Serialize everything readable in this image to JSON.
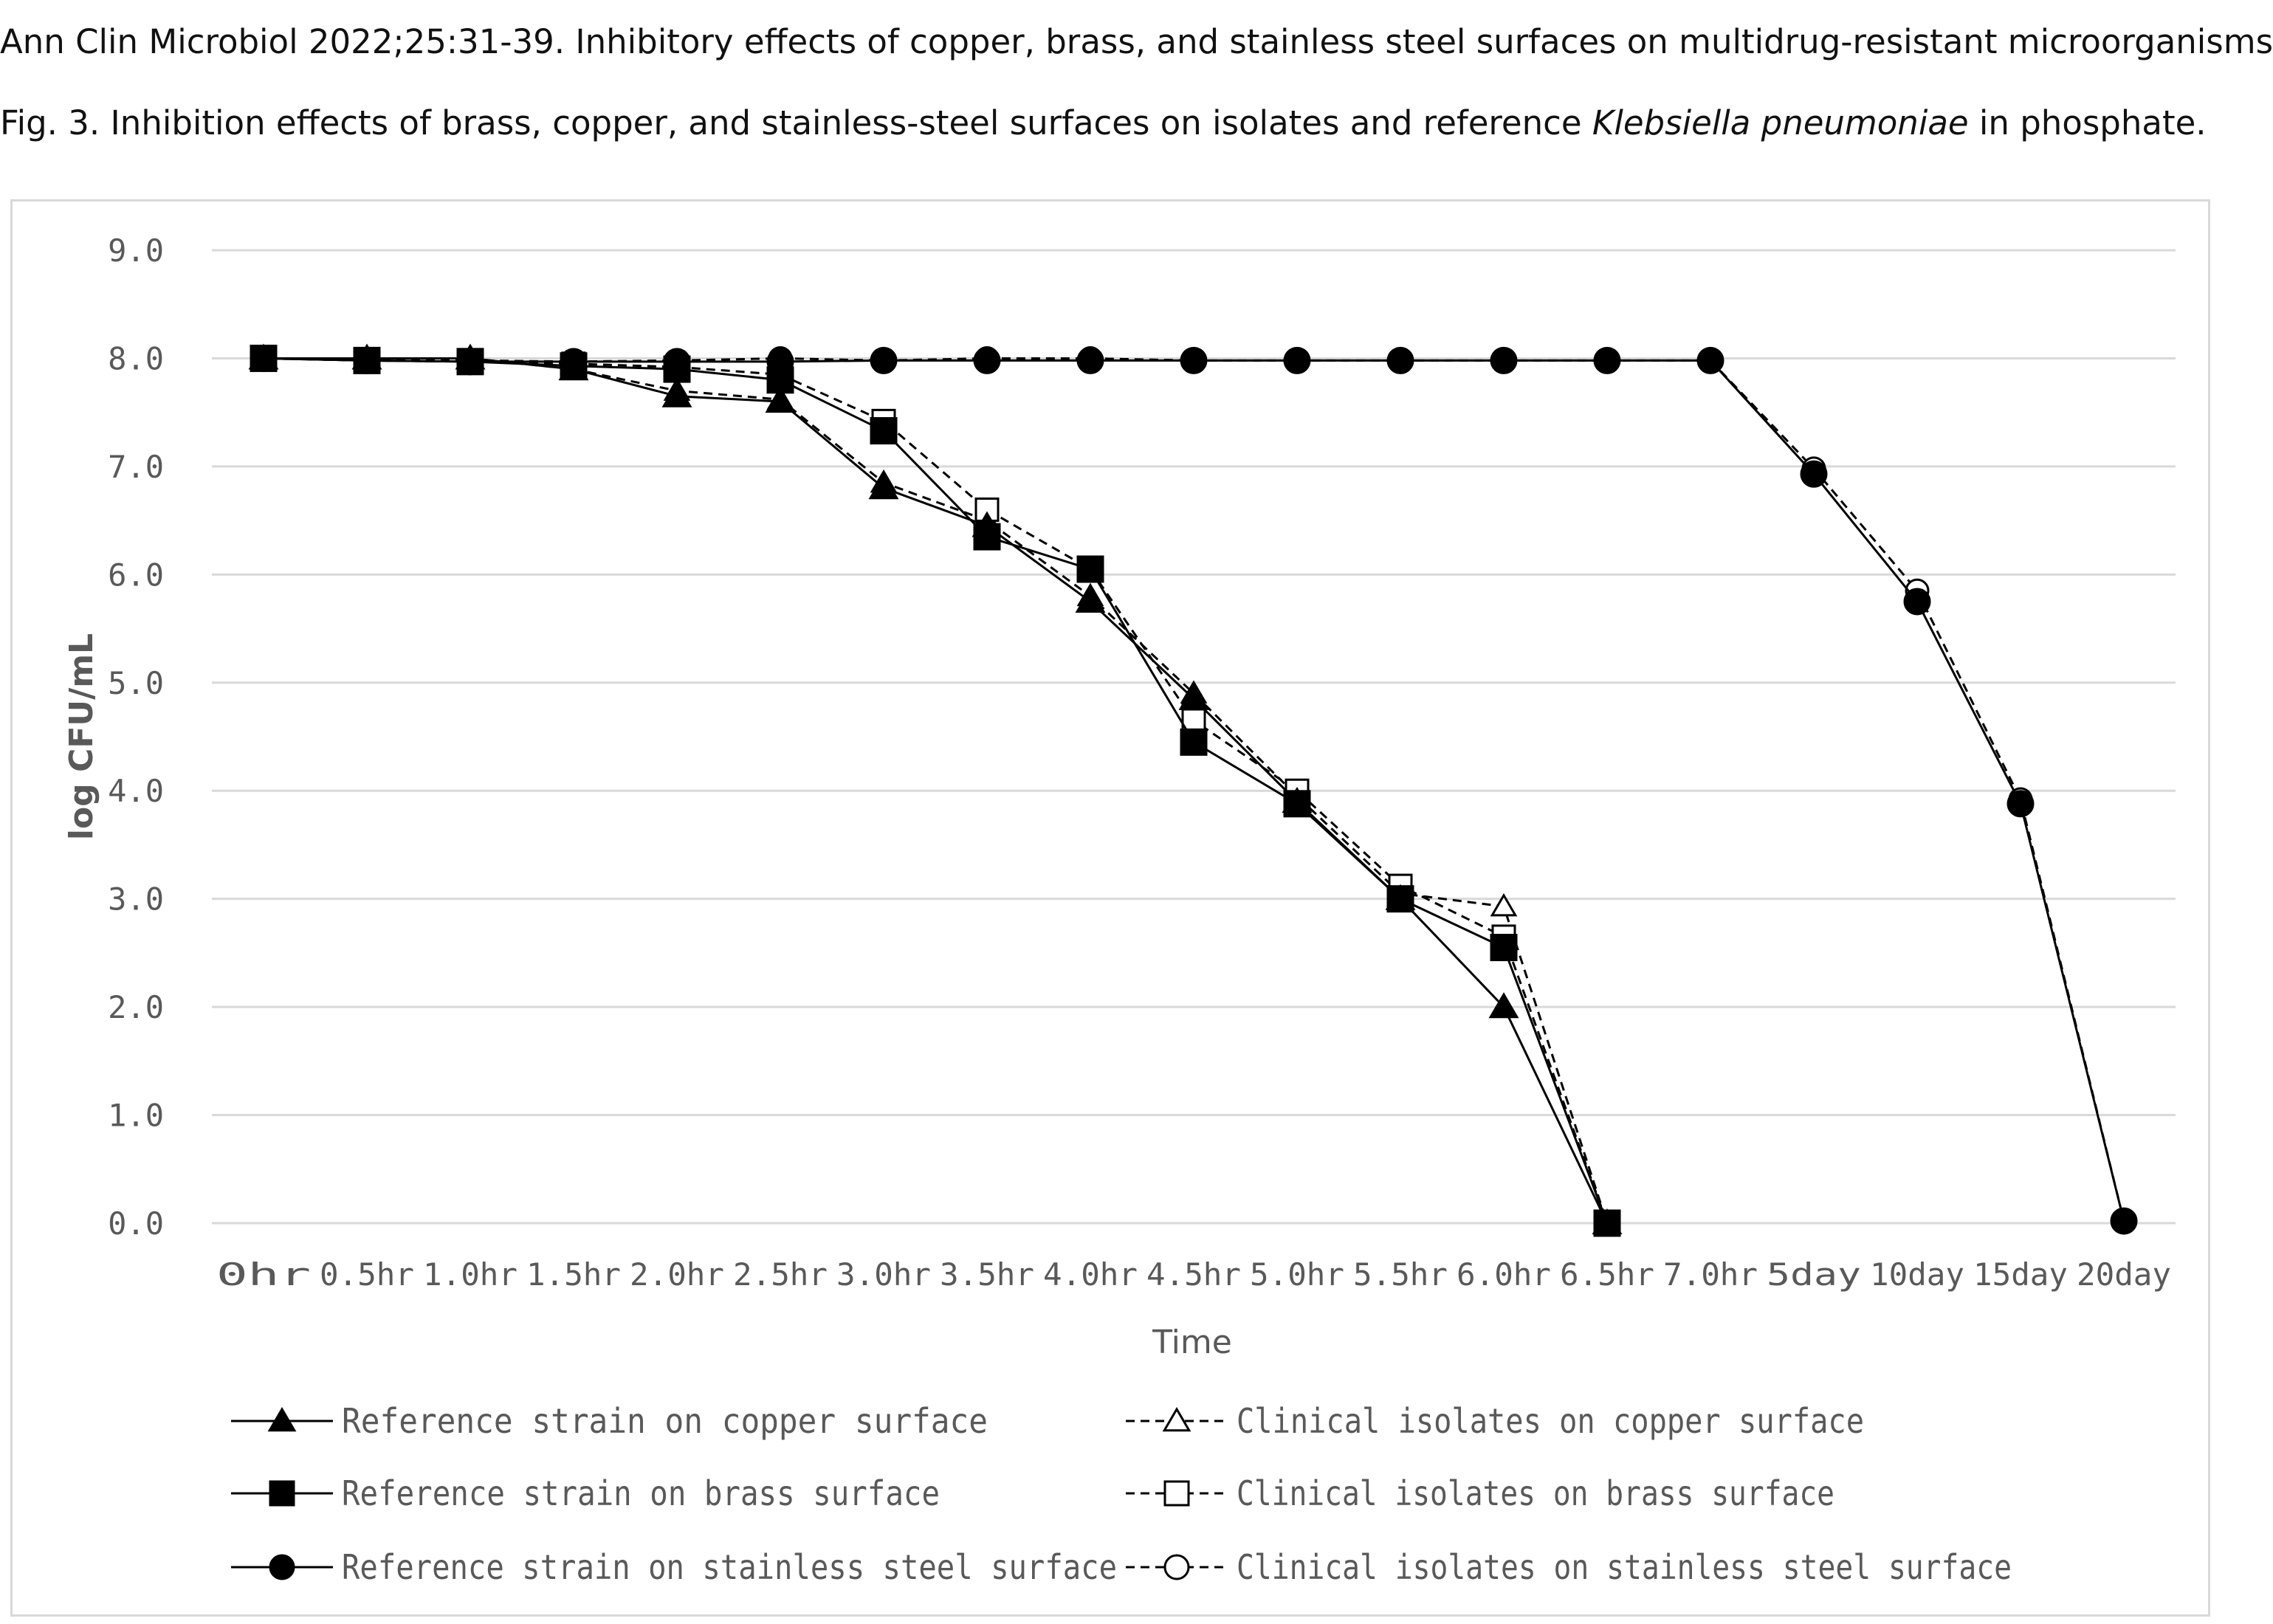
{
  "caption": {
    "line1": "Ann Clin Microbiol 2022;25:31-39. Inhibitory effects of copper, brass, and stainless steel surfaces on multidrug-resistant microorganisms",
    "line2_prefix": "Fig. 3. Inhibition effects of brass, copper, and stainless-steel surfaces on isolates and reference ",
    "line2_italic": "Klebsiella pneumoniae",
    "line2_suffix": " in phosphate."
  },
  "chart_data": {
    "type": "line",
    "title": "",
    "xlabel": "Time",
    "ylabel": "log CFU/mL",
    "ylim": [
      0,
      9
    ],
    "yticks": [
      "9.0",
      "8.0",
      "7.0",
      "6.0",
      "5.0",
      "4.0",
      "3.0",
      "2.0",
      "1.0",
      "0.0"
    ],
    "grid": "horizontal",
    "legend_position": "bottom",
    "categories": [
      "0hr",
      "0.5hr",
      "1.0hr",
      "1.5hr",
      "2.0hr",
      "2.5hr",
      "3.0hr",
      "3.5hr",
      "4.0hr",
      "4.5hr",
      "5.0hr",
      "5.5hr",
      "6.0hr",
      "6.5hr",
      "7.0hr",
      "5day",
      "10day",
      "15day",
      "20day"
    ],
    "series": [
      {
        "name": "Reference strain on copper surface",
        "marker": "triangle",
        "filled": true,
        "dashed": false,
        "values": [
          8.0,
          8.0,
          8.0,
          7.9,
          7.65,
          7.6,
          6.8,
          6.45,
          5.75,
          4.85,
          3.9,
          3.0,
          2.0,
          0.0,
          null,
          null,
          null,
          null,
          null
        ]
      },
      {
        "name": "Reference strain on brass surface",
        "marker": "square",
        "filled": true,
        "dashed": false,
        "values": [
          8.0,
          7.98,
          7.97,
          7.93,
          7.9,
          7.8,
          7.33,
          6.35,
          6.05,
          4.45,
          3.88,
          3.0,
          2.55,
          0.0,
          null,
          null,
          null,
          null,
          null
        ]
      },
      {
        "name": "Reference strain on stainless steel surface",
        "marker": "circle",
        "filled": true,
        "dashed": false,
        "values": [
          8.0,
          7.98,
          7.97,
          7.97,
          7.97,
          7.97,
          7.98,
          7.98,
          7.98,
          7.98,
          7.98,
          7.98,
          7.98,
          7.98,
          7.98,
          6.93,
          5.75,
          3.88,
          0.02
        ]
      },
      {
        "name": "Clinical isolates on copper surface",
        "marker": "triangle",
        "filled": false,
        "dashed": true,
        "values": [
          8.0,
          8.0,
          8.0,
          7.9,
          7.7,
          7.62,
          6.85,
          6.5,
          5.8,
          4.9,
          3.95,
          3.05,
          2.93,
          0.0,
          null,
          null,
          null,
          null,
          null
        ]
      },
      {
        "name": "Clinical isolates on brass surface",
        "marker": "square",
        "filled": false,
        "dashed": true,
        "values": [
          8.0,
          7.98,
          7.97,
          7.95,
          7.92,
          7.85,
          7.42,
          6.6,
          6.05,
          4.65,
          4.0,
          3.12,
          2.65,
          0.0,
          null,
          null,
          null,
          null,
          null
        ]
      },
      {
        "name": "Clinical isolates on stainless steel surface",
        "marker": "circle",
        "filled": false,
        "dashed": true,
        "values": [
          8.0,
          7.98,
          7.98,
          7.97,
          7.98,
          8.0,
          7.98,
          8.0,
          8.0,
          7.98,
          7.98,
          7.98,
          7.98,
          7.98,
          7.98,
          6.98,
          5.85,
          3.92,
          0.02
        ]
      }
    ]
  },
  "colors": {
    "line": "#000000",
    "grid": "#d9d9d9",
    "tick_text": "#595959",
    "axis_title": "#595959"
  }
}
